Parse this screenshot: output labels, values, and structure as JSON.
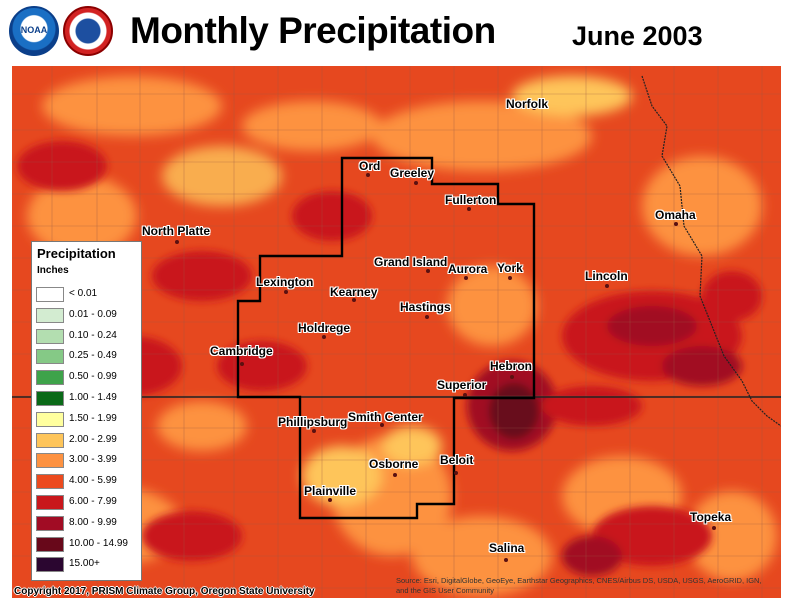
{
  "header": {
    "title": "Monthly Precipitation",
    "date": "June 2003",
    "logos": [
      {
        "name": "noaa-logo",
        "text": "NOAA"
      },
      {
        "name": "nws-logo",
        "text": ""
      }
    ]
  },
  "legend": {
    "title": "Precipitation",
    "units": "Inches",
    "classes": [
      {
        "label": "< 0.01",
        "color": "#ffffff"
      },
      {
        "label": "0.01 - 0.09",
        "color": "#d3ecd1"
      },
      {
        "label": "0.10 - 0.24",
        "color": "#b3deb0"
      },
      {
        "label": "0.25 - 0.49",
        "color": "#85c986"
      },
      {
        "label": "0.50 - 0.99",
        "color": "#3ea34a"
      },
      {
        "label": "1.00 - 1.49",
        "color": "#0a6a18"
      },
      {
        "label": "1.50 - 1.99",
        "color": "#ffff9e"
      },
      {
        "label": "2.00 - 2.99",
        "color": "#fec55a"
      },
      {
        "label": "3.00 - 3.99",
        "color": "#fd9241"
      },
      {
        "label": "4.00 - 5.99",
        "color": "#ec4a1e"
      },
      {
        "label": "6.00 - 7.99",
        "color": "#c9171c"
      },
      {
        "label": "8.00 - 9.99",
        "color": "#a10c24"
      },
      {
        "label": "10.00 - 14.99",
        "color": "#68081a"
      },
      {
        "label": "15.00+",
        "color": "#2b0630"
      }
    ]
  },
  "cities": [
    {
      "name": "Norfolk"
    },
    {
      "name": "Ord"
    },
    {
      "name": "Greeley"
    },
    {
      "name": "Fullerton"
    },
    {
      "name": "North Platte"
    },
    {
      "name": "Omaha"
    },
    {
      "name": "Grand Island"
    },
    {
      "name": "Aurora"
    },
    {
      "name": "York"
    },
    {
      "name": "Lincoln"
    },
    {
      "name": "Lexington"
    },
    {
      "name": "Kearney"
    },
    {
      "name": "Hastings"
    },
    {
      "name": "Holdrege"
    },
    {
      "name": "Cambridge"
    },
    {
      "name": "Hebron"
    },
    {
      "name": "Superior"
    },
    {
      "name": "Phillipsburg"
    },
    {
      "name": "Smith Center"
    },
    {
      "name": "Beloit"
    },
    {
      "name": "Osborne"
    },
    {
      "name": "Plainville"
    },
    {
      "name": "Topeka"
    },
    {
      "name": "Salina"
    }
  ],
  "footer": {
    "copyright": "Copyright 2017, PRISM Climate Group, Oregon State University",
    "credits": "Source: Esri, DigitalGlobe, GeoEye, Earthstar Geographics, CNES/Airbus DS, USDA, USGS, AeroGRID, IGN, and the GIS User Community"
  }
}
